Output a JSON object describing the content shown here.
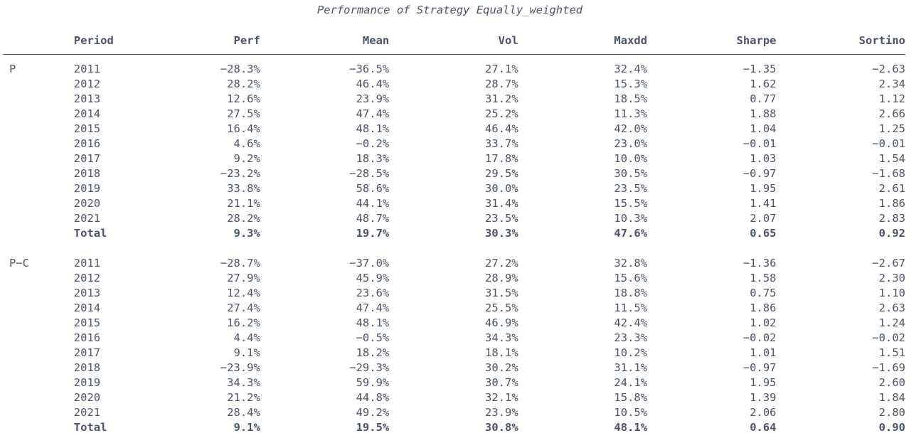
{
  "chart_data": {
    "type": "table",
    "title": "Performance of Strategy Equally_weighted",
    "columns": [
      "Period",
      "Perf",
      "Mean",
      "Vol",
      "Maxdd",
      "Sharpe",
      "Sortino"
    ],
    "groups": [
      {
        "name": "P",
        "rows": [
          {
            "period": "2011",
            "perf": "−28.3%",
            "mean": "−36.5%",
            "vol": "27.1%",
            "maxdd": "32.4%",
            "sharpe": "−1.35",
            "sortino": "−2.63"
          },
          {
            "period": "2012",
            "perf": "28.2%",
            "mean": "46.4%",
            "vol": "28.7%",
            "maxdd": "15.3%",
            "sharpe": "1.62",
            "sortino": "2.34"
          },
          {
            "period": "2013",
            "perf": "12.6%",
            "mean": "23.9%",
            "vol": "31.2%",
            "maxdd": "18.5%",
            "sharpe": "0.77",
            "sortino": "1.12"
          },
          {
            "period": "2014",
            "perf": "27.5%",
            "mean": "47.4%",
            "vol": "25.2%",
            "maxdd": "11.3%",
            "sharpe": "1.88",
            "sortino": "2.66"
          },
          {
            "period": "2015",
            "perf": "16.4%",
            "mean": "48.1%",
            "vol": "46.4%",
            "maxdd": "42.0%",
            "sharpe": "1.04",
            "sortino": "1.25"
          },
          {
            "period": "2016",
            "perf": "4.6%",
            "mean": "−0.2%",
            "vol": "33.7%",
            "maxdd": "23.0%",
            "sharpe": "−0.01",
            "sortino": "−0.01"
          },
          {
            "period": "2017",
            "perf": "9.2%",
            "mean": "18.3%",
            "vol": "17.8%",
            "maxdd": "10.0%",
            "sharpe": "1.03",
            "sortino": "1.54"
          },
          {
            "period": "2018",
            "perf": "−23.2%",
            "mean": "−28.5%",
            "vol": "29.5%",
            "maxdd": "30.5%",
            "sharpe": "−0.97",
            "sortino": "−1.68"
          },
          {
            "period": "2019",
            "perf": "33.8%",
            "mean": "58.6%",
            "vol": "30.0%",
            "maxdd": "23.5%",
            "sharpe": "1.95",
            "sortino": "2.61"
          },
          {
            "period": "2020",
            "perf": "21.1%",
            "mean": "44.1%",
            "vol": "31.4%",
            "maxdd": "15.5%",
            "sharpe": "1.41",
            "sortino": "1.86"
          },
          {
            "period": "2021",
            "perf": "28.2%",
            "mean": "48.7%",
            "vol": "23.5%",
            "maxdd": "10.3%",
            "sharpe": "2.07",
            "sortino": "2.83"
          }
        ],
        "total": {
          "period": "Total",
          "perf": "9.3%",
          "mean": "19.7%",
          "vol": "30.3%",
          "maxdd": "47.6%",
          "sharpe": "0.65",
          "sortino": "0.92"
        }
      },
      {
        "name": "P−C",
        "rows": [
          {
            "period": "2011",
            "perf": "−28.7%",
            "mean": "−37.0%",
            "vol": "27.2%",
            "maxdd": "32.8%",
            "sharpe": "−1.36",
            "sortino": "−2.67"
          },
          {
            "period": "2012",
            "perf": "27.9%",
            "mean": "45.9%",
            "vol": "28.9%",
            "maxdd": "15.6%",
            "sharpe": "1.58",
            "sortino": "2.30"
          },
          {
            "period": "2013",
            "perf": "12.4%",
            "mean": "23.6%",
            "vol": "31.5%",
            "maxdd": "18.8%",
            "sharpe": "0.75",
            "sortino": "1.10"
          },
          {
            "period": "2014",
            "perf": "27.4%",
            "mean": "47.4%",
            "vol": "25.5%",
            "maxdd": "11.5%",
            "sharpe": "1.86",
            "sortino": "2.63"
          },
          {
            "period": "2015",
            "perf": "16.2%",
            "mean": "48.1%",
            "vol": "46.9%",
            "maxdd": "42.4%",
            "sharpe": "1.02",
            "sortino": "1.24"
          },
          {
            "period": "2016",
            "perf": "4.4%",
            "mean": "−0.5%",
            "vol": "34.3%",
            "maxdd": "23.3%",
            "sharpe": "−0.02",
            "sortino": "−0.02"
          },
          {
            "period": "2017",
            "perf": "9.1%",
            "mean": "18.2%",
            "vol": "18.1%",
            "maxdd": "10.2%",
            "sharpe": "1.01",
            "sortino": "1.51"
          },
          {
            "period": "2018",
            "perf": "−23.9%",
            "mean": "−29.3%",
            "vol": "30.2%",
            "maxdd": "31.1%",
            "sharpe": "−0.97",
            "sortino": "−1.69"
          },
          {
            "period": "2019",
            "perf": "34.3%",
            "mean": "59.9%",
            "vol": "30.7%",
            "maxdd": "24.1%",
            "sharpe": "1.95",
            "sortino": "2.60"
          },
          {
            "period": "2020",
            "perf": "21.2%",
            "mean": "44.8%",
            "vol": "32.1%",
            "maxdd": "15.8%",
            "sharpe": "1.39",
            "sortino": "1.84"
          },
          {
            "period": "2021",
            "perf": "28.4%",
            "mean": "49.2%",
            "vol": "23.9%",
            "maxdd": "10.5%",
            "sharpe": "2.06",
            "sortino": "2.80"
          }
        ],
        "total": {
          "period": "Total",
          "perf": "9.1%",
          "mean": "19.5%",
          "vol": "30.8%",
          "maxdd": "48.1%",
          "sharpe": "0.64",
          "sortino": "0.90"
        }
      }
    ]
  },
  "colors": {
    "text": "#4a5568",
    "rule": "#4a5568",
    "background": "#ffffff"
  }
}
